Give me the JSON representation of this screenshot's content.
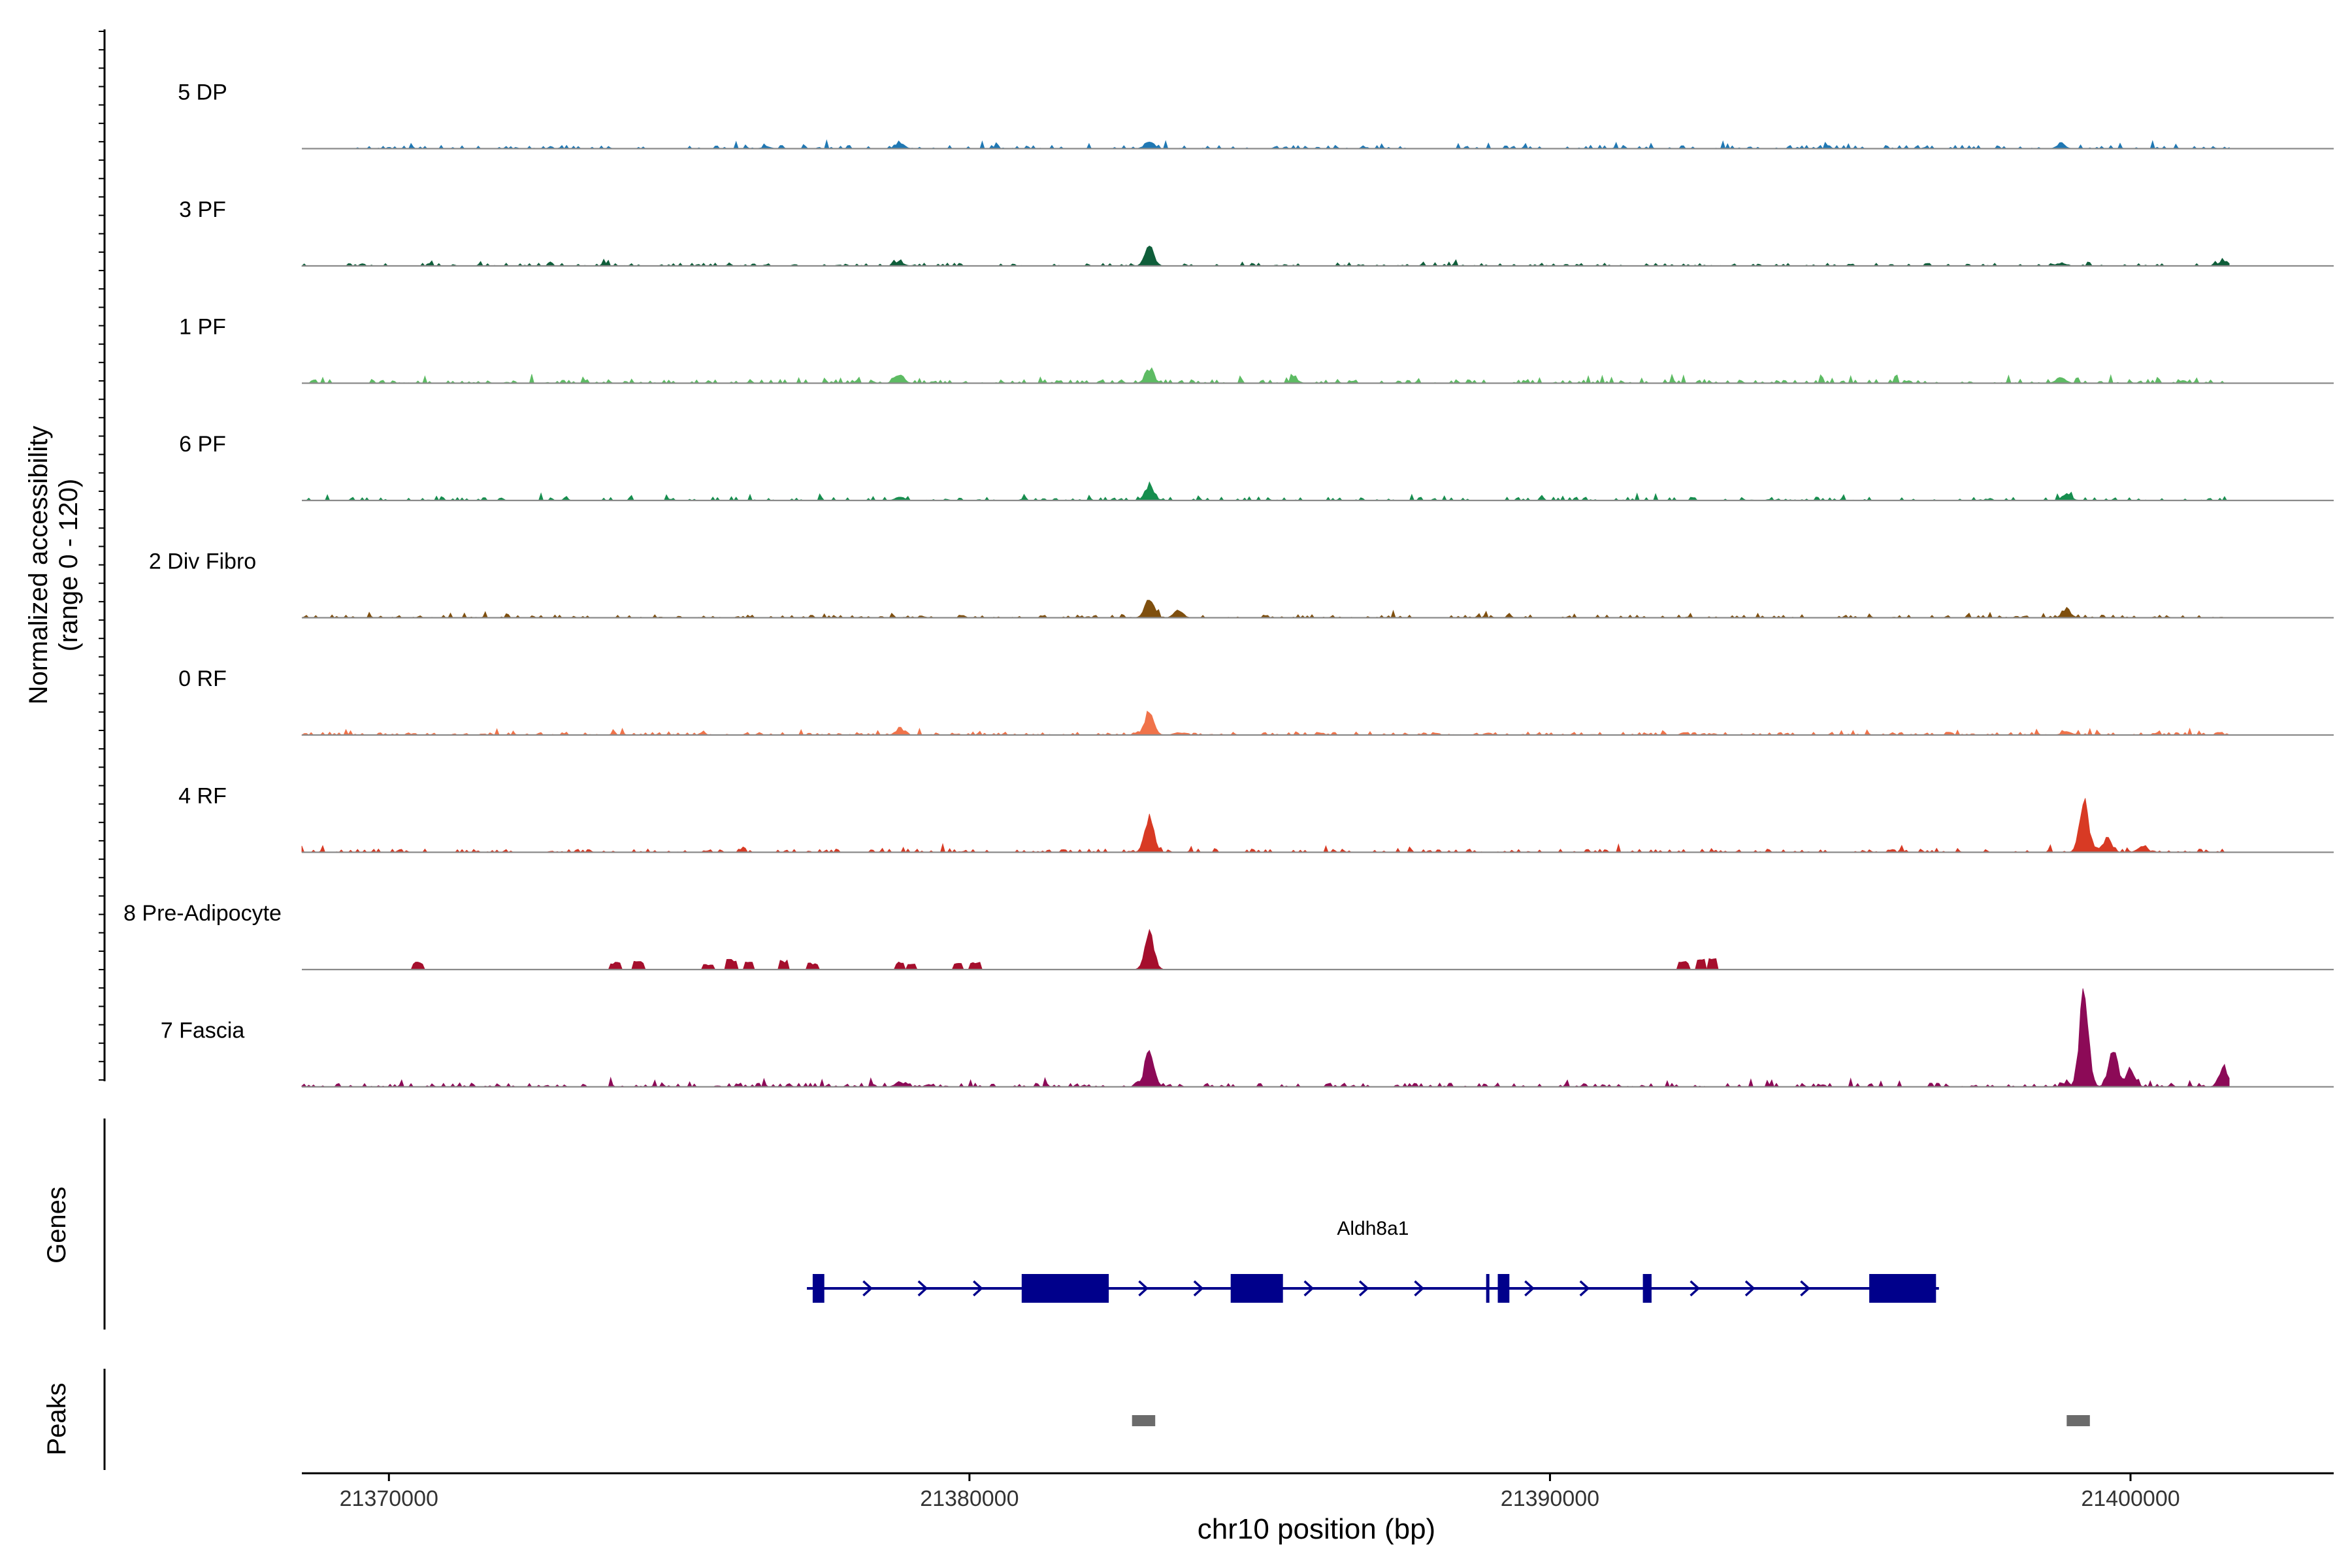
{
  "chart_data": {
    "type": "area",
    "subtype": "genome-coverage-plot",
    "chromosome": "chr10",
    "xlabel": "chr10 position (bp)",
    "xlim": [
      21368500,
      21403500
    ],
    "x_ticks": [
      {
        "value": 21370000,
        "label": "21370000"
      },
      {
        "value": 21380000,
        "label": "21380000"
      },
      {
        "value": 21390000,
        "label": "21390000"
      },
      {
        "value": 21400000,
        "label": "21400000"
      }
    ],
    "ylabel_line1": "Normalized accessibility",
    "ylabel_line2": "(range 0 - 120)",
    "ylim": [
      0,
      120
    ],
    "data_start": 21368500,
    "data_end": 21401700,
    "series": [
      {
        "name": "5 DP",
        "color": "#1f78b4",
        "noise": 3.5,
        "density": 0.55,
        "sparse": false,
        "peaks": [
          [
            21383100,
            8
          ],
          [
            21378800,
            6
          ],
          [
            21398800,
            4
          ],
          [
            21376500,
            2
          ]
        ]
      },
      {
        "name": "3 PF",
        "color": "#0f5e3a",
        "noise": 3,
        "density": 0.5,
        "sparse": false,
        "peaks": [
          [
            21383100,
            20
          ],
          [
            21401600,
            6
          ],
          [
            21378800,
            4
          ],
          [
            21398800,
            3
          ]
        ]
      },
      {
        "name": "1 PF",
        "color": "#5dbb63",
        "noise": 4,
        "density": 0.7,
        "sparse": false,
        "peaks": [
          [
            21383100,
            14
          ],
          [
            21378800,
            8
          ],
          [
            21398800,
            7
          ],
          [
            21385600,
            4
          ]
        ]
      },
      {
        "name": "6 PF",
        "color": "#168e4e",
        "noise": 3.5,
        "density": 0.55,
        "sparse": false,
        "peaks": [
          [
            21383100,
            16
          ],
          [
            21398900,
            7
          ],
          [
            21378800,
            4
          ]
        ]
      },
      {
        "name": "2 Div Fibro",
        "color": "#7f4f0e",
        "noise": 3,
        "density": 0.55,
        "sparse": false,
        "peaks": [
          [
            21383100,
            22
          ],
          [
            21383600,
            8
          ],
          [
            21398900,
            8
          ]
        ]
      },
      {
        "name": "0 RF",
        "color": "#f0734a",
        "noise": 3,
        "density": 0.75,
        "sparse": false,
        "peaks": [
          [
            21383100,
            26
          ],
          [
            21378800,
            6
          ],
          [
            21398900,
            4
          ],
          [
            21383600,
            3
          ]
        ]
      },
      {
        "name": "4 RF",
        "color": "#d83a24",
        "noise": 3.5,
        "density": 0.65,
        "sparse": false,
        "peaks": [
          [
            21383100,
            40
          ],
          [
            21399200,
            55
          ],
          [
            21399600,
            15
          ],
          [
            21400200,
            6
          ]
        ]
      },
      {
        "name": "8 Pre-Adipocyte",
        "color": "#a50f2d",
        "noise": 0,
        "density": 0,
        "sparse": true,
        "peaks": [
          [
            21383100,
            40
          ]
        ],
        "blocks": [
          [
            21370500,
            8
          ],
          [
            21373900,
            8
          ],
          [
            21374300,
            9
          ],
          [
            21375500,
            6
          ],
          [
            21375900,
            12
          ],
          [
            21376200,
            8
          ],
          [
            21376800,
            10
          ],
          [
            21377300,
            7
          ],
          [
            21378800,
            8
          ],
          [
            21379000,
            6
          ],
          [
            21379800,
            7
          ],
          [
            21380100,
            8
          ],
          [
            21392300,
            9
          ],
          [
            21392600,
            12
          ],
          [
            21392800,
            14
          ]
        ]
      },
      {
        "name": "7 Fascia",
        "color": "#8c0a57",
        "noise": 4,
        "density": 0.7,
        "sparse": false,
        "peaks": [
          [
            21383100,
            42
          ],
          [
            21399200,
            104
          ],
          [
            21399700,
            38
          ],
          [
            21400000,
            18
          ],
          [
            21401600,
            20
          ],
          [
            21378800,
            5
          ]
        ]
      }
    ],
    "genes": {
      "label": "Genes",
      "gene_name": "Aldh8a1",
      "start": 21377200,
      "end": 21396700,
      "strand": "+",
      "color": "#00008b",
      "exons": [
        [
          21377300,
          21377500
        ],
        [
          21380900,
          21382400
        ],
        [
          21384500,
          21385400
        ],
        [
          21388900,
          21388950
        ],
        [
          21389100,
          21389300
        ],
        [
          21391600,
          21391750
        ],
        [
          21395500,
          21396650
        ]
      ]
    },
    "peaks": {
      "label": "Peaks",
      "color": "#6b6b6b",
      "regions": [
        [
          21382800,
          21383200
        ],
        [
          21398900,
          21399300
        ]
      ]
    },
    "grid": false,
    "legend": "none"
  }
}
